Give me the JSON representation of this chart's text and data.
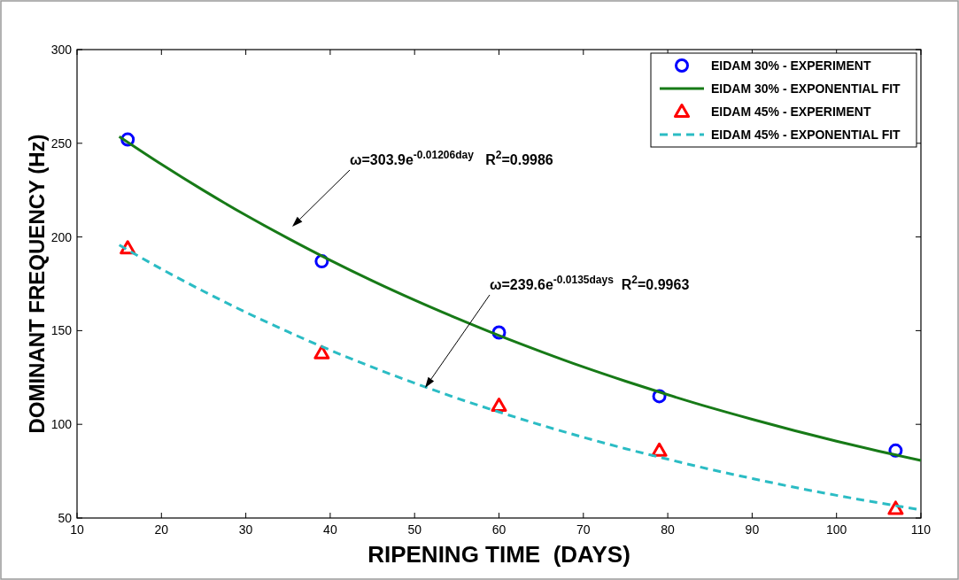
{
  "chart_data": {
    "type": "scatter",
    "xlabel": "RIPENING TIME  (DAYS)",
    "ylabel": "DOMINANT FREQUENCY (Hz)",
    "xlim": [
      10,
      110
    ],
    "ylim": [
      50,
      300
    ],
    "xticks": [
      10,
      20,
      30,
      40,
      50,
      60,
      70,
      80,
      90,
      100,
      110
    ],
    "yticks": [
      50,
      100,
      150,
      200,
      250,
      300
    ],
    "grid": false,
    "legend": "top right",
    "series": [
      {
        "name": "EIDAM 30% - EXPERIMENT",
        "marker": "circle",
        "color": "#0000ff",
        "x": [
          16,
          39,
          60,
          79,
          107
        ],
        "values": [
          252,
          187,
          149,
          115,
          86
        ]
      },
      {
        "name": "EIDAM 30% - EXPONENTIAL FIT",
        "type": "line",
        "marker": "none",
        "line_style": "solid",
        "color": "#177a17",
        "x": [
          15,
          20,
          25,
          30,
          35,
          40,
          45,
          50,
          55,
          60,
          65,
          70,
          75,
          80,
          85,
          90,
          95,
          100,
          105,
          110
        ],
        "values": [
          253.6,
          238.8,
          224.8,
          211.6,
          199.3,
          187.6,
          176.6,
          166.3,
          156.6,
          147.4,
          138.8,
          130.6,
          123.0,
          115.8,
          109.0,
          102.7,
          96.7,
          91.0,
          85.7,
          80.7
        ]
      },
      {
        "name": "EIDAM 45% - EXPERIMENT",
        "marker": "triangle",
        "color": "#ff0000",
        "x": [
          16,
          39,
          60,
          79,
          107
        ],
        "values": [
          194,
          138,
          110,
          86,
          55
        ]
      },
      {
        "name": "EIDAM 45% - EXPONENTIAL FIT",
        "type": "line",
        "marker": "none",
        "line_style": "dashed",
        "color": "#2bbcc4",
        "x": [
          15,
          20,
          25,
          30,
          35,
          40,
          45,
          50,
          55,
          60,
          65,
          70,
          75,
          80,
          85,
          90,
          95,
          100,
          105,
          110
        ],
        "values": [
          195.7,
          182.9,
          171.0,
          159.8,
          149.4,
          139.6,
          130.5,
          122.0,
          114.0,
          106.6,
          99.6,
          93.1,
          87.0,
          81.4,
          76.0,
          71.1,
          66.4,
          62.1,
          58.1,
          54.3
        ]
      }
    ],
    "annotations": [
      "ω=303.9e$^{-0.01206day}$   R$^{2}$=0.9986",
      "ω=239.6e$^{-0.0135days}$  R$^{2}$=0.9963"
    ]
  }
}
